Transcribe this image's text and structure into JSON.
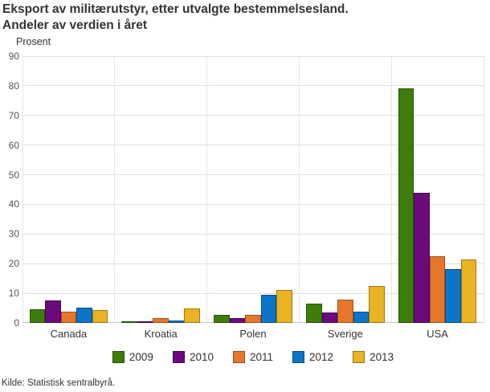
{
  "header": {
    "title_line1": "Eksport av militærutstyr, etter utvalgte bestemmelsesland.",
    "title_line2": "Andeler av verdien i året"
  },
  "chart_data": {
    "type": "bar",
    "title": "Eksport av militærutstyr, etter utvalgte bestemmelsesland. Andeler av verdien i året",
    "xlabel": "",
    "ylabel": "Prosent",
    "ylim": [
      0,
      90
    ],
    "ytick_step": 10,
    "grid": true,
    "legend_position": "bottom",
    "categories": [
      "Canada",
      "Kroatia",
      "Polen",
      "Sverige",
      "USA"
    ],
    "series": [
      {
        "name": "2009",
        "color": "#3D7D0A",
        "values": [
          4.7,
          0.2,
          2.8,
          6.5,
          79.1
        ]
      },
      {
        "name": "2010",
        "color": "#6A0A7D",
        "values": [
          7.6,
          0.3,
          1.5,
          3.5,
          43.9
        ]
      },
      {
        "name": "2011",
        "color": "#E8762A",
        "values": [
          3.9,
          1.5,
          2.6,
          7.9,
          22.5
        ]
      },
      {
        "name": "2012",
        "color": "#0D75C9",
        "values": [
          5.1,
          0.8,
          9.5,
          3.9,
          18.3
        ]
      },
      {
        "name": "2013",
        "color": "#E9B324",
        "values": [
          4.3,
          5.0,
          11.0,
          12.5,
          21.3
        ]
      }
    ]
  },
  "footer": {
    "source": "Kilde: Statistisk sentralbyrå."
  }
}
